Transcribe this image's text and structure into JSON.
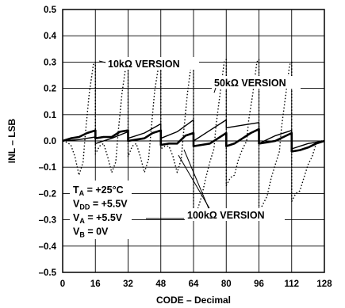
{
  "chart_data": {
    "type": "line",
    "xlabel": "CODE – Decimal",
    "ylabel": "INL – LSB",
    "xlim": [
      0,
      128
    ],
    "ylim": [
      -0.5,
      0.5
    ],
    "x_ticks": [
      "0",
      "16",
      "32",
      "48",
      "64",
      "80",
      "96",
      "112",
      "128"
    ],
    "y_ticks": [
      "–0.5",
      "–0.4",
      "–0.3",
      "–0.2",
      "–0.1",
      "0.0",
      "0.1",
      "0.2",
      "0.3",
      "0.4",
      "0.5"
    ],
    "grid": true,
    "series": [
      {
        "name": "10kΩ VERSION",
        "style": "dotted",
        "points": [
          [
            0,
            0
          ],
          [
            2,
            -0.005
          ],
          [
            4,
            -0.015
          ],
          [
            6,
            -0.06
          ],
          [
            8,
            -0.13
          ],
          [
            10,
            -0.08
          ],
          [
            11,
            0.02
          ],
          [
            13,
            0.18
          ],
          [
            15,
            0.29
          ],
          [
            16,
            0.3
          ],
          [
            16,
            -0.05
          ],
          [
            18,
            -0.02
          ],
          [
            20,
            -0.01
          ],
          [
            22,
            -0.06
          ],
          [
            24,
            -0.12
          ],
          [
            26,
            -0.08
          ],
          [
            27,
            0.02
          ],
          [
            29,
            0.18
          ],
          [
            31,
            0.29
          ],
          [
            32,
            0.3
          ],
          [
            32,
            -0.06
          ],
          [
            34,
            -0.02
          ],
          [
            36,
            -0.01
          ],
          [
            38,
            -0.06
          ],
          [
            40,
            -0.12
          ],
          [
            42,
            -0.07
          ],
          [
            43,
            0.02
          ],
          [
            45,
            0.19
          ],
          [
            47,
            0.29
          ],
          [
            48,
            0.3
          ],
          [
            48,
            -0.03
          ],
          [
            50,
            -0.02
          ],
          [
            52,
            -0.02
          ],
          [
            54,
            -0.06
          ],
          [
            56,
            -0.12
          ],
          [
            58,
            -0.07
          ],
          [
            59,
            0.02
          ],
          [
            61,
            0.18
          ],
          [
            63,
            0.3
          ],
          [
            64,
            0.31
          ],
          [
            64,
            -0.3
          ],
          [
            66,
            -0.26
          ],
          [
            68,
            -0.21
          ],
          [
            70,
            -0.14
          ],
          [
            72,
            -0.08
          ],
          [
            74,
            -0.03
          ],
          [
            75,
            0.06
          ],
          [
            77,
            0.18
          ],
          [
            79,
            0.3
          ],
          [
            80,
            0.31
          ],
          [
            80,
            -0.17
          ],
          [
            82,
            -0.14
          ],
          [
            84,
            -0.13
          ],
          [
            86,
            -0.07
          ],
          [
            88,
            -0.03
          ],
          [
            90,
            0.0
          ],
          [
            91,
            0.08
          ],
          [
            93,
            0.18
          ],
          [
            95,
            0.3
          ],
          [
            96,
            0.31
          ],
          [
            96,
            -0.27
          ],
          [
            98,
            -0.24
          ],
          [
            100,
            -0.21
          ],
          [
            102,
            -0.14
          ],
          [
            104,
            -0.09
          ],
          [
            106,
            -0.04
          ],
          [
            107,
            0.05
          ],
          [
            109,
            0.17
          ],
          [
            111,
            0.29
          ],
          [
            112,
            0.3
          ],
          [
            112,
            -0.23
          ],
          [
            114,
            -0.2
          ],
          [
            116,
            -0.19
          ],
          [
            118,
            -0.14
          ],
          [
            120,
            -0.09
          ],
          [
            122,
            -0.06
          ],
          [
            124,
            -0.01
          ],
          [
            126,
            0.0
          ],
          [
            128,
            0.0
          ]
        ]
      },
      {
        "name": "50kΩ VERSION",
        "style": "solid",
        "points": [
          [
            0,
            0
          ],
          [
            8,
            0.005
          ],
          [
            16,
            0.015
          ],
          [
            16,
            -0.01
          ],
          [
            24,
            0.01
          ],
          [
            32,
            0.035
          ],
          [
            32,
            0.01
          ],
          [
            40,
            0.03
          ],
          [
            48,
            0.065
          ],
          [
            48,
            0.01
          ],
          [
            56,
            0.035
          ],
          [
            64,
            0.08
          ],
          [
            64,
            0.0
          ],
          [
            72,
            0.04
          ],
          [
            80,
            0.08
          ],
          [
            80,
            0.05
          ],
          [
            88,
            0.06
          ],
          [
            96,
            0.07
          ],
          [
            96,
            -0.01
          ],
          [
            104,
            0.02
          ],
          [
            112,
            0.04
          ],
          [
            112,
            -0.03
          ],
          [
            120,
            -0.01
          ],
          [
            128,
            0.0
          ]
        ]
      },
      {
        "name": "100kΩ VERSION",
        "style": "bold",
        "points": [
          [
            0,
            0
          ],
          [
            4,
            0.01
          ],
          [
            8,
            0.015
          ],
          [
            12,
            0.03
          ],
          [
            16,
            0.04
          ],
          [
            16,
            0.01
          ],
          [
            20,
            0.015
          ],
          [
            24,
            0.015
          ],
          [
            28,
            0.035
          ],
          [
            32,
            0.04
          ],
          [
            32,
            0.0
          ],
          [
            36,
            0.005
          ],
          [
            40,
            0.01
          ],
          [
            44,
            0.03
          ],
          [
            48,
            0.04
          ],
          [
            48,
            -0.015
          ],
          [
            52,
            -0.01
          ],
          [
            56,
            -0.01
          ],
          [
            60,
            0.02
          ],
          [
            64,
            0.03
          ],
          [
            64,
            -0.02
          ],
          [
            68,
            -0.015
          ],
          [
            72,
            -0.01
          ],
          [
            76,
            0.01
          ],
          [
            80,
            0.03
          ],
          [
            80,
            -0.02
          ],
          [
            84,
            -0.01
          ],
          [
            88,
            0.01
          ],
          [
            92,
            0.03
          ],
          [
            96,
            0.045
          ],
          [
            96,
            -0.01
          ],
          [
            100,
            -0.005
          ],
          [
            104,
            0.0
          ],
          [
            108,
            0.015
          ],
          [
            112,
            0.03
          ],
          [
            112,
            -0.04
          ],
          [
            116,
            -0.035
          ],
          [
            120,
            -0.025
          ],
          [
            124,
            -0.01
          ],
          [
            128,
            0.0
          ]
        ]
      }
    ],
    "annotations": {
      "conditions": [
        {
          "main": "T",
          "sub": "A",
          "rest": " = +25°C"
        },
        {
          "main": "V",
          "sub": "DD",
          "rest": " = +5.5V"
        },
        {
          "main": "V",
          "sub": "A",
          "rest": " = +5.5V"
        },
        {
          "main": "V",
          "sub": "B",
          "rest": " = 0V"
        }
      ]
    }
  }
}
